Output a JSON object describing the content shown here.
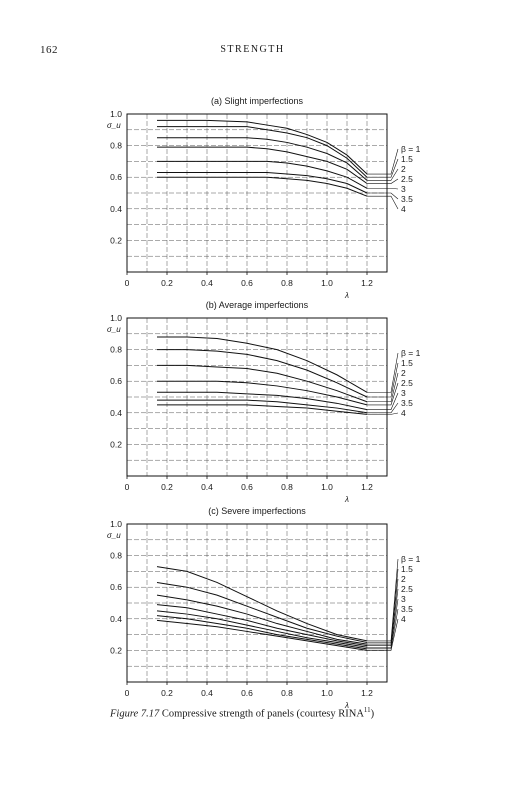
{
  "header": {
    "page_number": "162",
    "running_head": "STRENGTH"
  },
  "caption": {
    "label": "Figure 7.17",
    "text": "Compressive strength of panels (courtesy RINA",
    "superscript": "11",
    "close": ")"
  },
  "chart_data": [
    {
      "type": "line",
      "title": "(a) Slight imperfections",
      "xlabel": "λ",
      "ylabel": "σ_u",
      "xlim": [
        0,
        1.3
      ],
      "ylim": [
        0,
        1.0
      ],
      "x_ticks": [
        "0",
        "0.2",
        "0.4",
        "0.6",
        "0.8",
        "1.0",
        "1.2"
      ],
      "y_ticks": [
        "1.0",
        "0.8",
        "0.6",
        "0.4",
        "0.2"
      ],
      "grid": true,
      "legend_labels": [
        "β = 1",
        "1.5",
        "2",
        "2.5",
        "3",
        "3.5",
        "4"
      ],
      "series": [
        {
          "name": "β = 1",
          "x": [
            0.15,
            0.4,
            0.6,
            0.7,
            0.8,
            0.9,
            1.0,
            1.1,
            1.2
          ],
          "values": [
            0.96,
            0.96,
            0.95,
            0.93,
            0.91,
            0.87,
            0.82,
            0.74,
            0.62
          ]
        },
        {
          "name": "1.5",
          "x": [
            0.15,
            0.4,
            0.6,
            0.7,
            0.8,
            0.9,
            1.0,
            1.1,
            1.2
          ],
          "values": [
            0.92,
            0.92,
            0.92,
            0.9,
            0.88,
            0.85,
            0.8,
            0.72,
            0.6
          ]
        },
        {
          "name": "2",
          "x": [
            0.15,
            0.4,
            0.6,
            0.7,
            0.8,
            0.9,
            1.0,
            1.1,
            1.2
          ],
          "values": [
            0.85,
            0.85,
            0.85,
            0.84,
            0.82,
            0.79,
            0.75,
            0.69,
            0.58
          ]
        },
        {
          "name": "2.5",
          "x": [
            0.15,
            0.4,
            0.6,
            0.7,
            0.8,
            0.9,
            1.0,
            1.1,
            1.2
          ],
          "values": [
            0.79,
            0.79,
            0.79,
            0.78,
            0.76,
            0.73,
            0.7,
            0.65,
            0.56
          ]
        },
        {
          "name": "3",
          "x": [
            0.15,
            0.4,
            0.6,
            0.7,
            0.8,
            0.9,
            1.0,
            1.1,
            1.2
          ],
          "values": [
            0.7,
            0.7,
            0.7,
            0.7,
            0.69,
            0.67,
            0.64,
            0.6,
            0.53
          ]
        },
        {
          "name": "3.5",
          "x": [
            0.15,
            0.4,
            0.6,
            0.7,
            0.8,
            0.9,
            1.0,
            1.1,
            1.2
          ],
          "values": [
            0.63,
            0.63,
            0.63,
            0.63,
            0.62,
            0.61,
            0.59,
            0.56,
            0.5
          ]
        },
        {
          "name": "4",
          "x": [
            0.15,
            0.4,
            0.6,
            0.7,
            0.8,
            0.9,
            1.0,
            1.1,
            1.2
          ],
          "values": [
            0.6,
            0.6,
            0.6,
            0.6,
            0.59,
            0.58,
            0.56,
            0.53,
            0.48
          ]
        }
      ]
    },
    {
      "type": "line",
      "title": "(b) Average imperfections",
      "xlabel": "λ",
      "ylabel": "σ_u",
      "xlim": [
        0,
        1.3
      ],
      "ylim": [
        0,
        1.0
      ],
      "x_ticks": [
        "0",
        "0.2",
        "0.4",
        "0.6",
        "0.8",
        "1.0",
        "1.2"
      ],
      "y_ticks": [
        "1.0",
        "0.8",
        "0.6",
        "0.4",
        "0.2"
      ],
      "grid": true,
      "legend_labels": [
        "β = 1",
        "1.5",
        "2",
        "2.5",
        "3",
        "3.5",
        "4"
      ],
      "series": [
        {
          "name": "β = 1",
          "x": [
            0.15,
            0.3,
            0.45,
            0.6,
            0.75,
            0.9,
            1.05,
            1.2
          ],
          "values": [
            0.88,
            0.88,
            0.87,
            0.84,
            0.8,
            0.73,
            0.64,
            0.53
          ]
        },
        {
          "name": "1.5",
          "x": [
            0.15,
            0.3,
            0.45,
            0.6,
            0.75,
            0.9,
            1.05,
            1.2
          ],
          "values": [
            0.8,
            0.8,
            0.79,
            0.77,
            0.73,
            0.67,
            0.59,
            0.5
          ]
        },
        {
          "name": "2",
          "x": [
            0.15,
            0.3,
            0.45,
            0.6,
            0.75,
            0.9,
            1.05,
            1.2
          ],
          "values": [
            0.7,
            0.7,
            0.69,
            0.68,
            0.65,
            0.6,
            0.54,
            0.47
          ]
        },
        {
          "name": "2.5",
          "x": [
            0.15,
            0.3,
            0.45,
            0.6,
            0.75,
            0.9,
            1.05,
            1.2
          ],
          "values": [
            0.6,
            0.6,
            0.6,
            0.59,
            0.57,
            0.54,
            0.5,
            0.45
          ]
        },
        {
          "name": "3",
          "x": [
            0.15,
            0.3,
            0.45,
            0.6,
            0.75,
            0.9,
            1.05,
            1.2
          ],
          "values": [
            0.53,
            0.53,
            0.53,
            0.52,
            0.51,
            0.49,
            0.46,
            0.42
          ]
        },
        {
          "name": "3.5",
          "x": [
            0.15,
            0.3,
            0.45,
            0.6,
            0.75,
            0.9,
            1.05,
            1.2
          ],
          "values": [
            0.48,
            0.48,
            0.48,
            0.48,
            0.47,
            0.45,
            0.43,
            0.4
          ]
        },
        {
          "name": "4",
          "x": [
            0.15,
            0.3,
            0.45,
            0.6,
            0.75,
            0.9,
            1.05,
            1.2
          ],
          "values": [
            0.45,
            0.45,
            0.45,
            0.45,
            0.44,
            0.43,
            0.41,
            0.39
          ]
        }
      ]
    },
    {
      "type": "line",
      "title": "(c) Severe imperfections",
      "xlabel": "λ",
      "ylabel": "σ_u",
      "xlim": [
        0,
        1.3
      ],
      "ylim": [
        0,
        1.0
      ],
      "x_ticks": [
        "0",
        "0.2",
        "0.4",
        "0.6",
        "0.8",
        "1.0",
        "1.2"
      ],
      "y_ticks": [
        "1.0",
        "0.8",
        "0.6",
        "0.4",
        "0.2"
      ],
      "grid": true,
      "legend_labels": [
        "β = 1",
        "1.5",
        "2",
        "2.5",
        "3",
        "3.5",
        "4"
      ],
      "series": [
        {
          "name": "β = 1",
          "x": [
            0.15,
            0.3,
            0.45,
            0.6,
            0.75,
            0.9,
            1.05,
            1.2
          ],
          "values": [
            0.73,
            0.7,
            0.63,
            0.54,
            0.45,
            0.37,
            0.3,
            0.26
          ]
        },
        {
          "name": "1.5",
          "x": [
            0.15,
            0.3,
            0.45,
            0.6,
            0.75,
            0.9,
            1.05,
            1.2
          ],
          "values": [
            0.63,
            0.6,
            0.55,
            0.48,
            0.41,
            0.34,
            0.29,
            0.25
          ]
        },
        {
          "name": "2",
          "x": [
            0.15,
            0.3,
            0.45,
            0.6,
            0.75,
            0.9,
            1.05,
            1.2
          ],
          "values": [
            0.55,
            0.52,
            0.48,
            0.43,
            0.37,
            0.32,
            0.27,
            0.24
          ]
        },
        {
          "name": "2.5",
          "x": [
            0.15,
            0.3,
            0.45,
            0.6,
            0.75,
            0.9,
            1.05,
            1.2
          ],
          "values": [
            0.49,
            0.47,
            0.43,
            0.39,
            0.34,
            0.3,
            0.26,
            0.23
          ]
        },
        {
          "name": "3",
          "x": [
            0.15,
            0.3,
            0.45,
            0.6,
            0.75,
            0.9,
            1.05,
            1.2
          ],
          "values": [
            0.45,
            0.43,
            0.4,
            0.36,
            0.32,
            0.28,
            0.25,
            0.22
          ]
        },
        {
          "name": "3.5",
          "x": [
            0.15,
            0.3,
            0.45,
            0.6,
            0.75,
            0.9,
            1.05,
            1.2
          ],
          "values": [
            0.42,
            0.4,
            0.37,
            0.34,
            0.3,
            0.27,
            0.24,
            0.21
          ]
        },
        {
          "name": "4",
          "x": [
            0.15,
            0.3,
            0.45,
            0.6,
            0.75,
            0.9,
            1.05,
            1.2
          ],
          "values": [
            0.39,
            0.37,
            0.35,
            0.32,
            0.29,
            0.26,
            0.23,
            0.2
          ]
        }
      ]
    }
  ]
}
